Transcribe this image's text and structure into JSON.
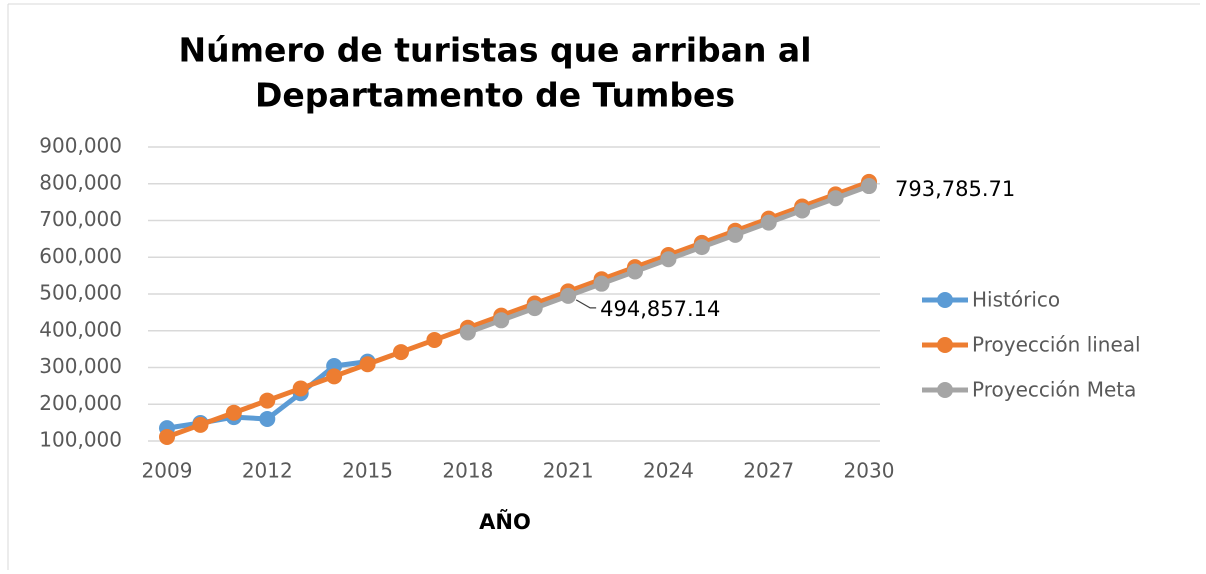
{
  "chart_data": {
    "type": "line",
    "title": [
      "Número de turistas que arriban al",
      "Departamento de Tumbes"
    ],
    "x_label": "AÑO",
    "x": [
      2009,
      2010,
      2011,
      2012,
      2013,
      2014,
      2015,
      2016,
      2017,
      2018,
      2019,
      2020,
      2021,
      2022,
      2023,
      2024,
      2025,
      2026,
      2027,
      2028,
      2029,
      2030
    ],
    "xlim": [
      2009,
      2030
    ],
    "xticks": [
      2009,
      2012,
      2015,
      2018,
      2021,
      2024,
      2027,
      2030
    ],
    "ylim": [
      100000,
      900000
    ],
    "yticks": [
      {
        "value": 100000,
        "label": "100,000"
      },
      {
        "value": 200000,
        "label": "200,000"
      },
      {
        "value": 300000,
        "label": "300,000"
      },
      {
        "value": 400000,
        "label": "400,000"
      },
      {
        "value": 500000,
        "label": "500,000"
      },
      {
        "value": 600000,
        "label": "600,000"
      },
      {
        "value": 700000,
        "label": "700,000"
      },
      {
        "value": 800000,
        "label": "800,000"
      },
      {
        "value": 900000,
        "label": "900,000"
      }
    ],
    "grid": true,
    "legend": "right",
    "series": [
      {
        "name": "Histórico",
        "color": "#5b9bd5",
        "values": [
          135000,
          149000,
          165000,
          160000,
          230000,
          304000,
          316000,
          null,
          null,
          null,
          null,
          null,
          null,
          null,
          null,
          null,
          null,
          null,
          null,
          null,
          null,
          null
        ]
      },
      {
        "name": "Proyección lineal",
        "color": "#ed7d31",
        "values": [
          111000,
          144000,
          177000,
          210000,
          243000,
          276000,
          309000,
          342000,
          375000,
          408000,
          441000,
          474000,
          507000,
          540000,
          573000,
          606000,
          639000,
          672000,
          705000,
          738000,
          771000,
          805000
        ]
      },
      {
        "name": "Proyección Meta",
        "color": "#a5a5a5",
        "values": [
          null,
          null,
          null,
          null,
          null,
          null,
          null,
          null,
          null,
          395214.29,
          428428.57,
          461642.86,
          494857.14,
          528071.43,
          561285.71,
          594500,
          627714.29,
          660928.57,
          694142.86,
          727357.14,
          760571.43,
          793785.71
        ],
        "value_labels": [
          null,
          null,
          null,
          null,
          null,
          null,
          null,
          null,
          null,
          null,
          null,
          null,
          "494,857.14",
          null,
          null,
          null,
          null,
          null,
          null,
          null,
          null,
          "793,785.71"
        ]
      }
    ]
  }
}
